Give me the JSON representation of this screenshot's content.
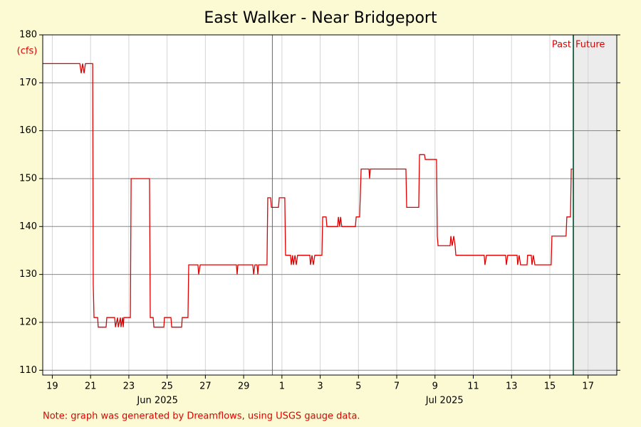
{
  "chart_data": {
    "type": "line",
    "title": "East Walker - Near Bridgeport",
    "y_label": "(cfs)",
    "note": "Note: graph was generated by Dreamflows, using USGS gauge data.",
    "past_label": "Past",
    "future_label": "Future",
    "now": 45.73,
    "xlim": [
      18,
      48
    ],
    "xticks": [
      {
        "value": 18.5,
        "label": "19"
      },
      {
        "value": 20.5,
        "label": "21"
      },
      {
        "value": 22.5,
        "label": "23"
      },
      {
        "value": 24.5,
        "label": "25"
      },
      {
        "value": 26.5,
        "label": "27"
      },
      {
        "value": 28.5,
        "label": "29"
      },
      {
        "value": 30.5,
        "label": "1"
      },
      {
        "value": 32.5,
        "label": "3"
      },
      {
        "value": 34.5,
        "label": "5"
      },
      {
        "value": 36.5,
        "label": "7"
      },
      {
        "value": 38.5,
        "label": "9"
      },
      {
        "value": 40.5,
        "label": "11"
      },
      {
        "value": 42.5,
        "label": "13"
      },
      {
        "value": 44.5,
        "label": "15"
      },
      {
        "value": 46.5,
        "label": "17"
      }
    ],
    "month_labels": [
      {
        "value": 24,
        "label": "Jun 2025"
      },
      {
        "value": 39,
        "label": "Jul 2025"
      }
    ],
    "month_boundary": 30,
    "ylim": [
      109,
      180
    ],
    "yticks": [
      110,
      120,
      130,
      140,
      150,
      160,
      170,
      180
    ],
    "grid": true,
    "series": [
      {
        "name": "flow",
        "color": "#e00000",
        "x": [
          18.0,
          19.94,
          20.01,
          20.08,
          20.16,
          20.23,
          20.61,
          20.64,
          20.68,
          20.87,
          20.9,
          21.31,
          21.35,
          21.76,
          21.8,
          21.91,
          21.95,
          22.06,
          22.09,
          22.17,
          22.21,
          22.24,
          22.58,
          22.62,
          23.58,
          23.62,
          23.77,
          23.81,
          24.33,
          24.36,
          24.7,
          24.74,
          25.26,
          25.29,
          25.59,
          25.63,
          26.11,
          26.15,
          26.23,
          28.12,
          28.16,
          28.2,
          28.98,
          29.02,
          29.09,
          29.2,
          29.24,
          29.28,
          29.72,
          29.76,
          29.91,
          29.95,
          30.32,
          30.36,
          30.65,
          30.69,
          30.95,
          30.99,
          31.06,
          31.1,
          31.18,
          31.25,
          31.32,
          31.96,
          31.99,
          32.07,
          32.14,
          32.22,
          32.59,
          32.63,
          32.81,
          32.85,
          33.41,
          33.45,
          33.52,
          33.56,
          33.63,
          34.34,
          34.38,
          34.56,
          34.64,
          35.05,
          35.08,
          35.12,
          36.98,
          37.02,
          37.65,
          37.69,
          37.95,
          37.99,
          38.58,
          38.62,
          38.66,
          39.29,
          39.33,
          39.4,
          39.48,
          39.55,
          39.59,
          41.07,
          41.11,
          41.19,
          42.19,
          42.23,
          42.3,
          42.79,
          42.82,
          42.9,
          42.97,
          43.31,
          43.34,
          43.53,
          43.57,
          43.64,
          43.72,
          44.57,
          44.61,
          45.35,
          45.39,
          45.58,
          45.62,
          45.69
        ],
        "values": [
          174,
          174,
          172,
          174,
          172,
          174,
          174,
          128,
          121,
          121,
          119,
          119,
          121,
          121,
          119,
          121,
          119,
          121,
          119,
          121,
          119,
          121,
          121,
          150,
          150,
          121,
          121,
          119,
          119,
          121,
          121,
          119,
          119,
          121,
          121,
          132,
          132,
          130,
          132,
          132,
          130,
          132,
          132,
          130,
          132,
          132,
          130,
          132,
          132,
          146,
          146,
          144,
          144,
          146,
          146,
          134,
          134,
          132,
          134,
          132,
          134,
          132,
          134,
          134,
          132,
          134,
          132,
          134,
          134,
          142,
          142,
          140,
          140,
          142,
          140,
          142,
          140,
          140,
          142,
          142,
          152,
          152,
          150,
          152,
          152,
          144,
          144,
          155,
          155,
          154,
          154,
          138,
          136,
          136,
          138,
          136,
          138,
          136,
          134,
          134,
          132,
          134,
          134,
          132,
          134,
          134,
          132,
          134,
          132,
          132,
          134,
          134,
          132,
          134,
          132,
          132,
          138,
          138,
          142,
          142,
          152,
          152
        ]
      }
    ]
  }
}
